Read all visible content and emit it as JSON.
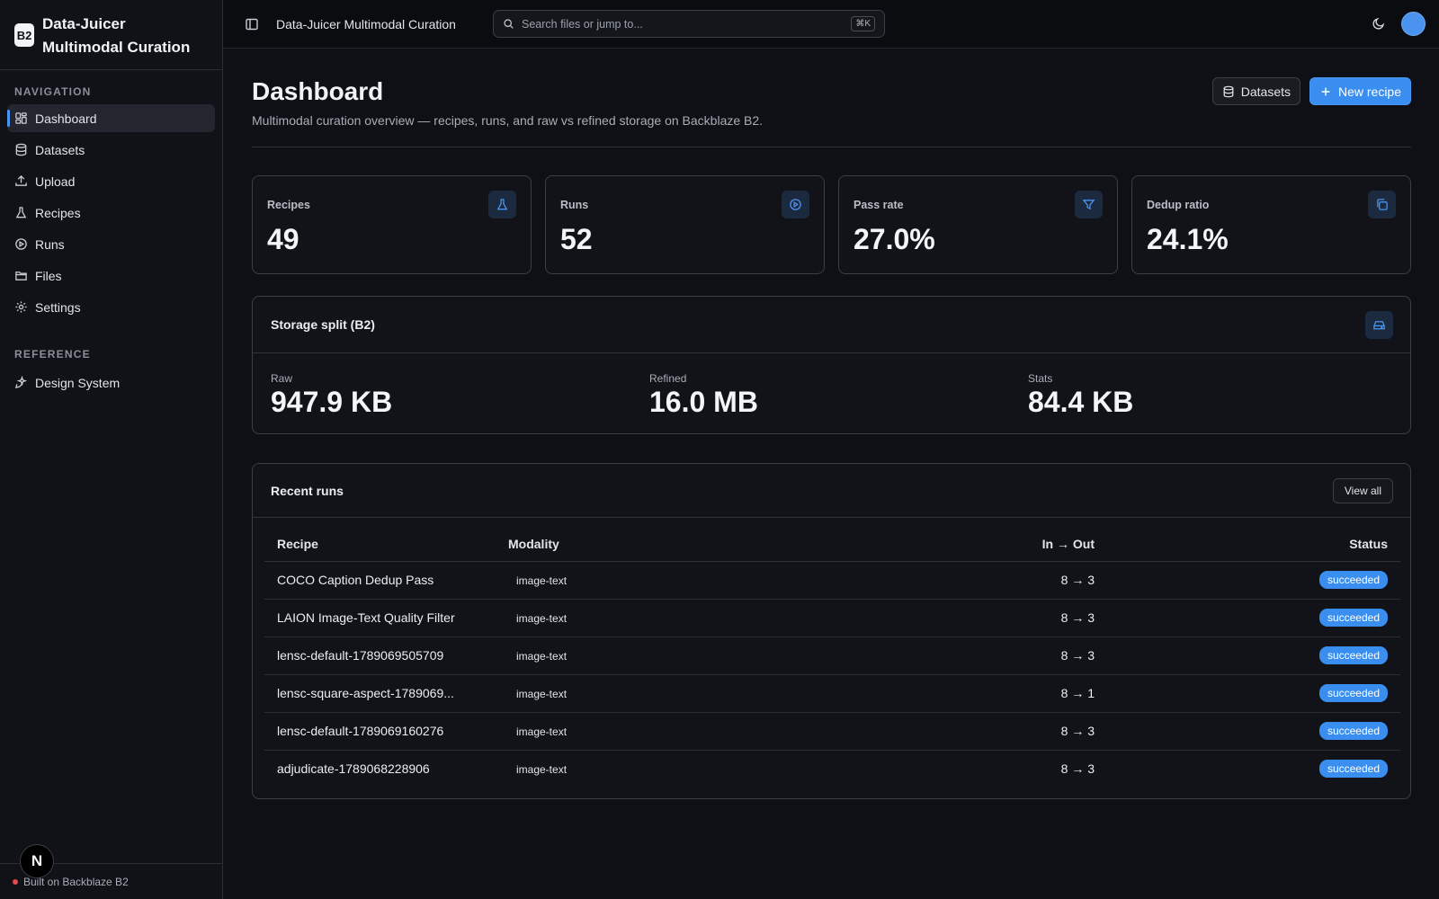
{
  "sidebar": {
    "brand_logo": "B2",
    "brand_title": "Data-Juicer Multimodal Curation",
    "nav_label": "NAVIGATION",
    "nav_items": [
      {
        "label": "Dashboard",
        "icon": "dashboard-icon",
        "active": true
      },
      {
        "label": "Datasets",
        "icon": "database-icon"
      },
      {
        "label": "Upload",
        "icon": "upload-icon"
      },
      {
        "label": "Recipes",
        "icon": "flask-icon"
      },
      {
        "label": "Runs",
        "icon": "play-circle-icon"
      },
      {
        "label": "Files",
        "icon": "folder-icon"
      },
      {
        "label": "Settings",
        "icon": "gear-icon"
      }
    ],
    "reference_label": "REFERENCE",
    "reference_items": [
      {
        "label": "Design System",
        "icon": "sparkle-icon"
      }
    ],
    "footer_text": "Built on Backblaze B2",
    "n_badge": "N"
  },
  "topbar": {
    "title": "Data-Juicer Multimodal Curation",
    "search_placeholder": "Search files or jump to...",
    "search_shortcut": "⌘K"
  },
  "page": {
    "title": "Dashboard",
    "subtitle": "Multimodal curation overview — recipes, runs, and raw vs refined storage on Backblaze B2.",
    "datasets_button": "Datasets",
    "new_recipe_button": "New recipe"
  },
  "stats": [
    {
      "label": "Recipes",
      "value": "49",
      "icon": "flask-icon"
    },
    {
      "label": "Runs",
      "value": "52",
      "icon": "play-circle-icon"
    },
    {
      "label": "Pass rate",
      "value": "27.0%",
      "icon": "filter-icon"
    },
    {
      "label": "Dedup ratio",
      "value": "24.1%",
      "icon": "copy-icon"
    }
  ],
  "storage": {
    "title": "Storage split (B2)",
    "icon": "hard-drive-icon",
    "items": [
      {
        "label": "Raw",
        "value": "947.9 KB"
      },
      {
        "label": "Refined",
        "value": "16.0 MB"
      },
      {
        "label": "Stats",
        "value": "84.4 KB"
      }
    ]
  },
  "runs": {
    "title": "Recent runs",
    "view_all": "View all",
    "columns": [
      "Recipe",
      "Modality",
      "In → Out",
      "Status"
    ],
    "rows": [
      {
        "recipe": "COCO Caption Dedup Pass",
        "modality": "image-text",
        "io": "8 → 3",
        "status": "succeeded"
      },
      {
        "recipe": "LAION Image-Text Quality Filter",
        "modality": "image-text",
        "io": "8 → 3",
        "status": "succeeded"
      },
      {
        "recipe": "lensc-default-1789069505709",
        "modality": "image-text",
        "io": "8 → 3",
        "status": "succeeded"
      },
      {
        "recipe": "lensc-square-aspect-1789069...",
        "modality": "image-text",
        "io": "8 → 1",
        "status": "succeeded"
      },
      {
        "recipe": "lensc-default-1789069160276",
        "modality": "image-text",
        "io": "8 → 3",
        "status": "succeeded"
      },
      {
        "recipe": "adjudicate-1789068228906",
        "modality": "image-text",
        "io": "8 → 3",
        "status": "succeeded"
      }
    ]
  },
  "colors": {
    "accent": "#3a8ef0",
    "background": "#0e1015",
    "card": "#111318",
    "border": "#3a3e47"
  }
}
